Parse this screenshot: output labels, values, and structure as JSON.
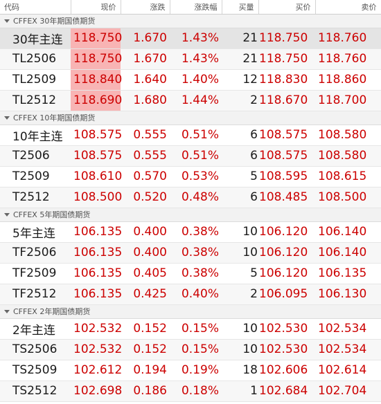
{
  "columns": {
    "code": "代码",
    "price": "现价",
    "change": "涨跌",
    "change_pct": "涨跌幅",
    "bid_vol": "买量",
    "bid": "买价",
    "ask": "卖价"
  },
  "colors": {
    "up": "#cc0000",
    "highlight": "#f8b4b4",
    "selected_row": "#e4e4e4"
  },
  "groups": [
    {
      "title": "CFFEX 30年期国债期货",
      "rows": [
        {
          "code": "30年主连",
          "price": "118.750",
          "change": "1.670",
          "pct": "1.43%",
          "vol": "21",
          "bid": "118.750",
          "ask": "118.760",
          "highlight": true,
          "selected": true
        },
        {
          "code": "TL2506",
          "price": "118.750",
          "change": "1.670",
          "pct": "1.43%",
          "vol": "21",
          "bid": "118.750",
          "ask": "118.760",
          "highlight": true,
          "selected": false
        },
        {
          "code": "TL2509",
          "price": "118.840",
          "change": "1.640",
          "pct": "1.40%",
          "vol": "12",
          "bid": "118.830",
          "ask": "118.860",
          "highlight": true,
          "selected": false
        },
        {
          "code": "TL2512",
          "price": "118.690",
          "change": "1.680",
          "pct": "1.44%",
          "vol": "2",
          "bid": "118.670",
          "ask": "118.700",
          "highlight": true,
          "selected": false
        }
      ]
    },
    {
      "title": "CFFEX 10年期国债期货",
      "rows": [
        {
          "code": "10年主连",
          "price": "108.575",
          "change": "0.555",
          "pct": "0.51%",
          "vol": "6",
          "bid": "108.575",
          "ask": "108.580",
          "highlight": false,
          "selected": false
        },
        {
          "code": "T2506",
          "price": "108.575",
          "change": "0.555",
          "pct": "0.51%",
          "vol": "6",
          "bid": "108.575",
          "ask": "108.580",
          "highlight": false,
          "selected": false
        },
        {
          "code": "T2509",
          "price": "108.610",
          "change": "0.570",
          "pct": "0.53%",
          "vol": "5",
          "bid": "108.595",
          "ask": "108.615",
          "highlight": false,
          "selected": false
        },
        {
          "code": "T2512",
          "price": "108.500",
          "change": "0.520",
          "pct": "0.48%",
          "vol": "6",
          "bid": "108.485",
          "ask": "108.500",
          "highlight": false,
          "selected": false
        }
      ]
    },
    {
      "title": "CFFEX 5年期国债期货",
      "rows": [
        {
          "code": "5年主连",
          "price": "106.135",
          "change": "0.400",
          "pct": "0.38%",
          "vol": "10",
          "bid": "106.120",
          "ask": "106.140",
          "highlight": false,
          "selected": false
        },
        {
          "code": "TF2506",
          "price": "106.135",
          "change": "0.400",
          "pct": "0.38%",
          "vol": "10",
          "bid": "106.120",
          "ask": "106.140",
          "highlight": false,
          "selected": false
        },
        {
          "code": "TF2509",
          "price": "106.135",
          "change": "0.405",
          "pct": "0.38%",
          "vol": "5",
          "bid": "106.120",
          "ask": "106.135",
          "highlight": false,
          "selected": false
        },
        {
          "code": "TF2512",
          "price": "106.135",
          "change": "0.425",
          "pct": "0.40%",
          "vol": "2",
          "bid": "106.095",
          "ask": "106.130",
          "highlight": false,
          "selected": false
        }
      ]
    },
    {
      "title": "CFFEX 2年期国债期货",
      "rows": [
        {
          "code": "2年主连",
          "price": "102.532",
          "change": "0.152",
          "pct": "0.15%",
          "vol": "10",
          "bid": "102.530",
          "ask": "102.534",
          "highlight": false,
          "selected": false
        },
        {
          "code": "TS2506",
          "price": "102.532",
          "change": "0.152",
          "pct": "0.15%",
          "vol": "10",
          "bid": "102.530",
          "ask": "102.534",
          "highlight": false,
          "selected": false
        },
        {
          "code": "TS2509",
          "price": "102.612",
          "change": "0.194",
          "pct": "0.19%",
          "vol": "18",
          "bid": "102.606",
          "ask": "102.614",
          "highlight": false,
          "selected": false
        },
        {
          "code": "TS2512",
          "price": "102.698",
          "change": "0.186",
          "pct": "0.18%",
          "vol": "1",
          "bid": "102.684",
          "ask": "102.704",
          "highlight": false,
          "selected": false
        }
      ]
    }
  ]
}
